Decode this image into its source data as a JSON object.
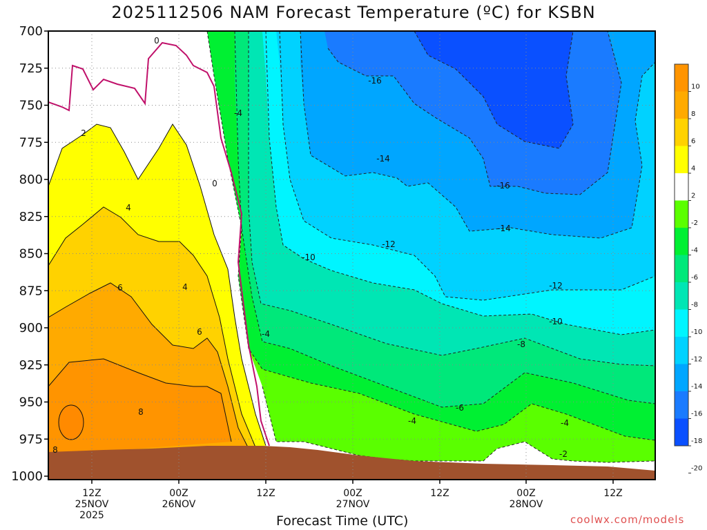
{
  "colors": {
    "ground": "#a0522d",
    "frost_line": "#c0106a",
    "bands": [
      "#0a50ff",
      "#1a7bff",
      "#00a6ff",
      "#00d2ff",
      "#00f5ff",
      "#00e6b4",
      "#00e87a",
      "#00f032",
      "#5aff00",
      "#ffffff",
      "#ffff00",
      "#ffd200",
      "#ffaa00",
      "#ff9400"
    ]
  },
  "chart_data": {
    "type": "heatmap",
    "title": "2025112506 NAM Forecast Temperature (ºC) for KSBN",
    "xlabel": "Forecast Time (UTC)",
    "ylabel": "",
    "credit": "coolwx.com/models",
    "y_ticks": [
      "700",
      "725",
      "750",
      "775",
      "800",
      "825",
      "850",
      "875",
      "900",
      "925",
      "950",
      "975",
      "1000"
    ],
    "y_range_hPa": [
      700,
      1000
    ],
    "x_ticks": [
      {
        "line1": "12Z",
        "line2": "25NOV",
        "line3": "2025"
      },
      {
        "line1": "00Z",
        "line2": "26NOV",
        "line3": ""
      },
      {
        "line1": "12Z",
        "line2": "",
        "line3": ""
      },
      {
        "line1": "00Z",
        "line2": "27NOV",
        "line3": ""
      },
      {
        "line1": "12Z",
        "line2": "",
        "line3": ""
      },
      {
        "line1": "00Z",
        "line2": "28NOV",
        "line3": ""
      },
      {
        "line1": "12Z",
        "line2": "",
        "line3": ""
      }
    ],
    "colorbar_ticks": [
      "10",
      "8",
      "6",
      "4",
      "2",
      "-2",
      "-4",
      "-6",
      "-8",
      "-10",
      "-12",
      "-14",
      "-16",
      "-18",
      "-20"
    ],
    "contour_labels": [
      "0",
      "0",
      "2",
      "4",
      "4",
      "6",
      "6",
      "8",
      "8",
      "-4",
      "-16",
      "-14",
      "-16",
      "-10",
      "-12",
      "-14",
      "-12",
      "-10",
      "-4",
      "-8",
      "-6",
      "-4",
      "-4",
      "-2"
    ]
  }
}
